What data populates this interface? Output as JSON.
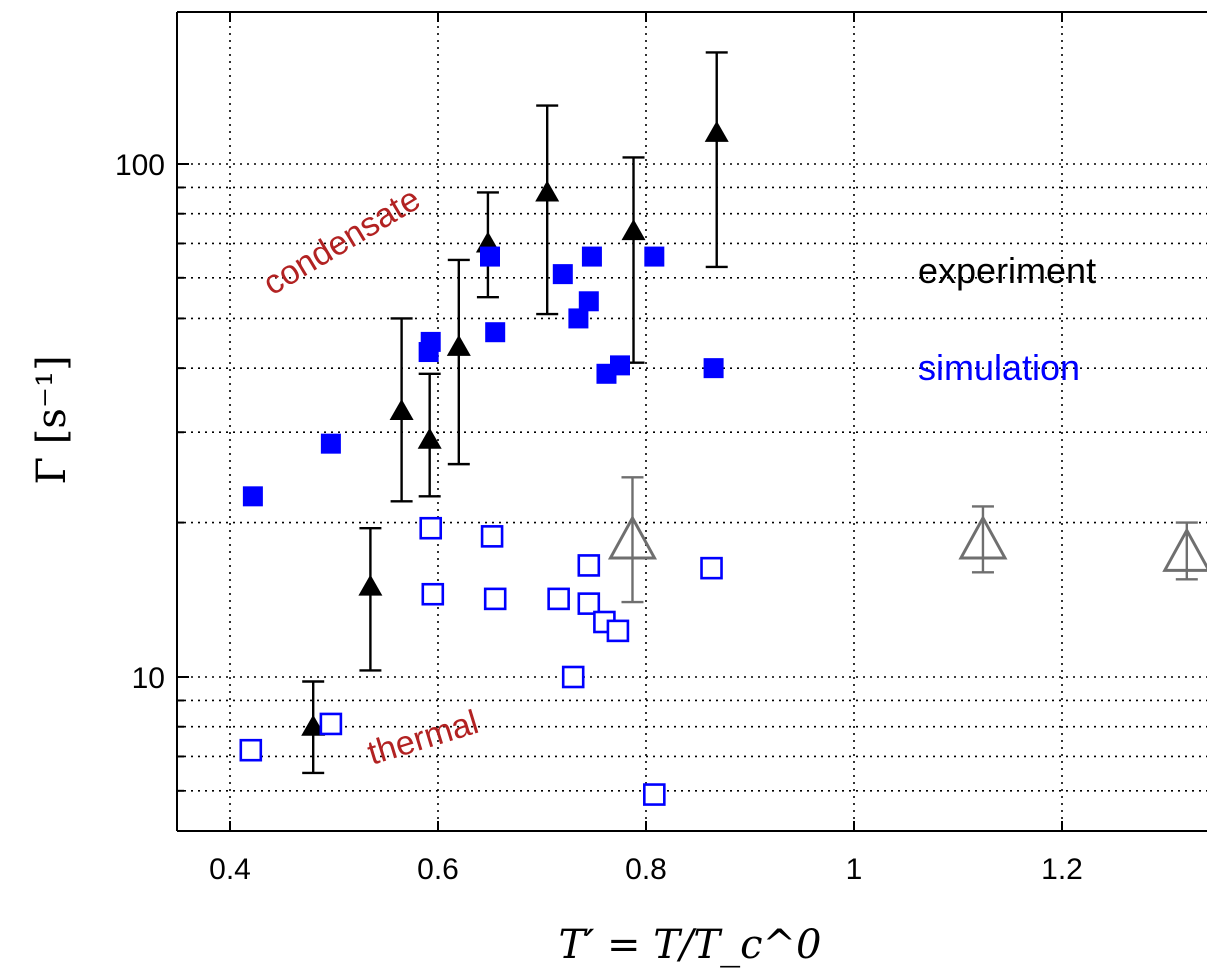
{
  "chart_data": {
    "type": "scatter",
    "title": "",
    "xlabel": "T′ = T/T_c^0",
    "ylabel": "Γ [s⁻¹]",
    "x_ticks": [
      0.4,
      0.6,
      0.8,
      1,
      1.2
    ],
    "x_tick_labels": [
      "0.4",
      "0.6",
      "0.8",
      "1",
      "1.2"
    ],
    "y_ticks": [
      10,
      100
    ],
    "y_tick_labels": [
      "10",
      "100"
    ],
    "xlim": [
      0.35,
      1.35
    ],
    "ylim": [
      5.0,
      200
    ],
    "yscale": "log",
    "grid": true,
    "legend_entries": [
      {
        "label": "experiment",
        "color": "#000000"
      },
      {
        "label": "simulation",
        "color": "#0000ff"
      }
    ],
    "annotations": [
      {
        "text": "condensate",
        "color": "#b22222"
      },
      {
        "text": "thermal",
        "color": "#b22222"
      }
    ],
    "series": [
      {
        "kind": "experiment-condensate",
        "color": "#000000",
        "points": [
          {
            "x": 0.48,
            "y": 8.0,
            "lo": 6.5,
            "hi": 9.8
          },
          {
            "x": 0.535,
            "y": 15,
            "lo": 10.3,
            "hi": 19.5
          },
          {
            "x": 0.565,
            "y": 33,
            "lo": 22,
            "hi": 50
          },
          {
            "x": 0.592,
            "y": 29,
            "lo": 22.5,
            "hi": 39
          },
          {
            "x": 0.62,
            "y": 44,
            "lo": 26,
            "hi": 65
          },
          {
            "x": 0.648,
            "y": 70,
            "lo": 55,
            "hi": 88
          },
          {
            "x": 0.705,
            "y": 88,
            "lo": 51,
            "hi": 130
          },
          {
            "x": 0.788,
            "y": 74,
            "lo": 41,
            "hi": 103
          },
          {
            "x": 0.868,
            "y": 115,
            "lo": 63,
            "hi": 165
          }
        ]
      },
      {
        "kind": "experiment-thermal",
        "color": "#6f6f6f",
        "points": [
          {
            "x": 0.787,
            "y": 18.5,
            "lo": 14.0,
            "hi": 24.5
          },
          {
            "x": 1.124,
            "y": 18.5,
            "lo": 16.0,
            "hi": 21.5
          },
          {
            "x": 1.32,
            "y": 17.5,
            "lo": 15.5,
            "hi": 20.0
          }
        ]
      },
      {
        "kind": "simulation-condensate",
        "color": "#0000ff",
        "points": [
          {
            "x": 0.422,
            "y": 22.5
          },
          {
            "x": 0.497,
            "y": 28.5
          },
          {
            "x": 0.591,
            "y": 43
          },
          {
            "x": 0.593,
            "y": 45
          },
          {
            "x": 0.65,
            "y": 66
          },
          {
            "x": 0.655,
            "y": 47
          },
          {
            "x": 0.72,
            "y": 61
          },
          {
            "x": 0.735,
            "y": 50
          },
          {
            "x": 0.745,
            "y": 54
          },
          {
            "x": 0.748,
            "y": 66
          },
          {
            "x": 0.762,
            "y": 39
          },
          {
            "x": 0.775,
            "y": 40.5
          },
          {
            "x": 0.808,
            "y": 66
          },
          {
            "x": 0.865,
            "y": 40
          }
        ]
      },
      {
        "kind": "simulation-thermal",
        "color": "#0000ff",
        "points": [
          {
            "x": 0.42,
            "y": 7.2
          },
          {
            "x": 0.497,
            "y": 8.1
          },
          {
            "x": 0.593,
            "y": 19.5
          },
          {
            "x": 0.595,
            "y": 14.5
          },
          {
            "x": 0.652,
            "y": 18.8
          },
          {
            "x": 0.655,
            "y": 14.2
          },
          {
            "x": 0.716,
            "y": 14.2
          },
          {
            "x": 0.73,
            "y": 10.0
          },
          {
            "x": 0.745,
            "y": 16.5
          },
          {
            "x": 0.745,
            "y": 13.9
          },
          {
            "x": 0.76,
            "y": 12.8
          },
          {
            "x": 0.773,
            "y": 12.3
          },
          {
            "x": 0.808,
            "y": 5.9
          },
          {
            "x": 0.863,
            "y": 16.3
          }
        ]
      }
    ]
  }
}
